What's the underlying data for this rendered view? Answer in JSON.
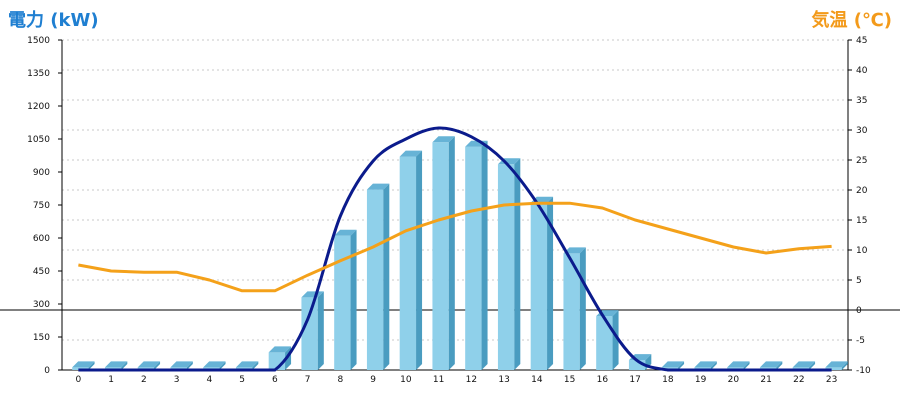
{
  "chart_data": {
    "type": "bar",
    "title_left": "電力 (kW)",
    "title_right": "気温 (℃)",
    "categories": [
      "0",
      "1",
      "2",
      "3",
      "4",
      "5",
      "6",
      "7",
      "8",
      "9",
      "10",
      "11",
      "12",
      "13",
      "14",
      "15",
      "16",
      "17",
      "18",
      "19",
      "20",
      "21",
      "22",
      "23"
    ],
    "left_axis": {
      "ylim": [
        0,
        1500
      ],
      "ticks": [
        0,
        150,
        300,
        450,
        600,
        750,
        900,
        1050,
        1200,
        1350,
        1500
      ]
    },
    "right_axis": {
      "ylim": [
        -10,
        45
      ],
      "ticks": [
        -10,
        -5,
        0,
        5,
        10,
        15,
        20,
        25,
        30,
        35,
        40,
        45
      ]
    },
    "series": [
      {
        "kind": "bar",
        "axis": "left",
        "values": [
          12,
          12,
          12,
          12,
          12,
          12,
          80,
          330,
          610,
          820,
          970,
          1035,
          1015,
          935,
          760,
          530,
          245,
          45,
          12,
          12,
          12,
          12,
          12,
          12
        ]
      },
      {
        "kind": "smooth-line",
        "axis": "left",
        "values": [
          0,
          0,
          0,
          0,
          0,
          0,
          0,
          230,
          700,
          950,
          1050,
          1100,
          1060,
          950,
          760,
          510,
          250,
          50,
          0,
          0,
          0,
          0,
          0,
          0
        ]
      },
      {
        "kind": "line",
        "axis": "right",
        "values": [
          7.5,
          6.5,
          6.3,
          6.3,
          5,
          3.2,
          3.2,
          5.8,
          8.2,
          10.5,
          13.2,
          15,
          16.5,
          17.5,
          17.8,
          17.8,
          17,
          15,
          13.5,
          12,
          10.5,
          9.5,
          10.2,
          10.6
        ]
      }
    ],
    "colors": {
      "bar_face": "#8fd0ea",
      "bar_side": "#4a9cc0",
      "bar_top": "#67b3d6",
      "smooth_line": "#0b1b8c",
      "temp_line": "#f4a11a",
      "title_left": "#1f7fd1",
      "title_right": "#f39a1a",
      "grid": "#c9c9c9"
    },
    "grid": true
  }
}
